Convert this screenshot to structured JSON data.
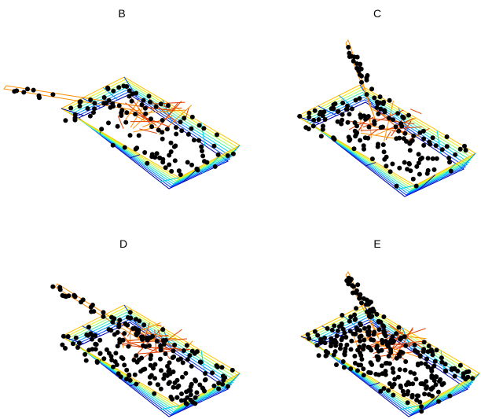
{
  "panels": [
    {
      "label": "B"
    },
    {
      "label": "C"
    },
    {
      "label": "D"
    },
    {
      "label": "E"
    }
  ]
}
